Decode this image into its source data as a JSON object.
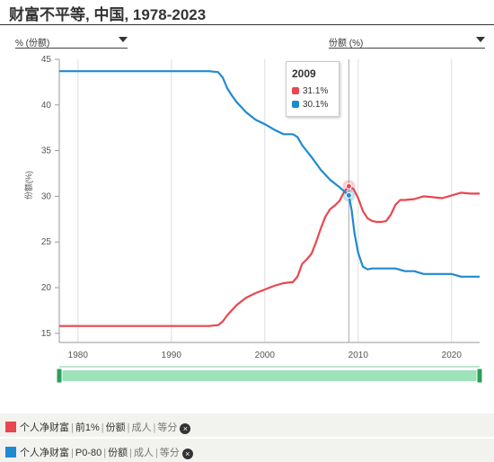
{
  "title": "财富不平等, 中国, 1978-2023",
  "selectors": {
    "left": "% (份额)",
    "right": "份额 (%)"
  },
  "tooltip": {
    "year": "2009",
    "series1": "31.1%",
    "series2": "30.1%"
  },
  "legend": [
    {
      "color": "#e8474f",
      "parts": [
        "个人净财富",
        "前1%",
        "份额"
      ],
      "muted": [
        "成人",
        "等分"
      ],
      "remove": "×"
    },
    {
      "color": "#1f8ad0",
      "parts": [
        "个人净财富",
        "P0-80",
        "份额"
      ],
      "muted": [
        "成人",
        "等分"
      ],
      "remove": "×"
    }
  ],
  "chart_data": {
    "type": "line",
    "title": "财富不平等, 中国, 1978-2023",
    "xlabel": "",
    "ylabel": "份额(%)",
    "xlim": [
      1978,
      2023
    ],
    "ylim": [
      14,
      45
    ],
    "xticks": [
      1980,
      1990,
      2000,
      2010,
      2020
    ],
    "yticks": [
      15,
      20,
      25,
      30,
      35,
      40,
      45
    ],
    "grid": true,
    "highlight_x": 2009,
    "series": [
      {
        "name": "个人净财富 | 前1% | 份额",
        "color": "#e8474f",
        "x": [
          1978,
          1980,
          1985,
          1990,
          1994,
          1995,
          1995.5,
          1996,
          1997,
          1998,
          1999,
          2000,
          2001,
          2002,
          2003,
          2003.5,
          2004,
          2004.5,
          2005,
          2005.5,
          2006,
          2006.5,
          2007,
          2007.5,
          2008,
          2008.5,
          2009,
          2009.5,
          2010,
          2010.5,
          2011,
          2011.5,
          2012,
          2012.5,
          2013,
          2013.5,
          2014,
          2014.5,
          2015,
          2016,
          2017,
          2018,
          2019,
          2020,
          2021,
          2022,
          2023
        ],
        "values": [
          15.8,
          15.8,
          15.8,
          15.8,
          15.8,
          15.9,
          16.3,
          17.0,
          18.1,
          18.9,
          19.4,
          19.8,
          20.2,
          20.5,
          20.6,
          21.2,
          22.6,
          23.1,
          23.7,
          25.0,
          26.5,
          27.8,
          28.6,
          29.0,
          29.5,
          30.5,
          31.1,
          30.8,
          29.8,
          28.4,
          27.6,
          27.3,
          27.2,
          27.2,
          27.3,
          28.0,
          29.1,
          29.6,
          29.6,
          29.7,
          30.0,
          29.9,
          29.8,
          30.1,
          30.4,
          30.3,
          30.3
        ]
      },
      {
        "name": "个人净财富 | P0-80 | 份额",
        "color": "#1f8ad0",
        "x": [
          1978,
          1980,
          1985,
          1990,
          1994,
          1995,
          1995.5,
          1996,
          1996.5,
          1997,
          1998,
          1999,
          2000,
          2001,
          2002,
          2003,
          2003.5,
          2004,
          2005,
          2006,
          2007,
          2008,
          2009,
          2009.3,
          2009.6,
          2010,
          2010.5,
          2011,
          2011.5,
          2012,
          2013,
          2014,
          2015,
          2016,
          2017,
          2018,
          2019,
          2020,
          2021,
          2022,
          2023
        ],
        "values": [
          43.7,
          43.7,
          43.7,
          43.7,
          43.7,
          43.6,
          43.0,
          41.8,
          41.0,
          40.3,
          39.2,
          38.4,
          37.9,
          37.3,
          36.8,
          36.8,
          36.5,
          35.6,
          34.3,
          32.9,
          31.8,
          31.0,
          30.1,
          28.5,
          26.0,
          23.8,
          22.3,
          22.0,
          22.1,
          22.1,
          22.1,
          22.1,
          21.8,
          21.8,
          21.5,
          21.5,
          21.5,
          21.5,
          21.2,
          21.2,
          21.2
        ]
      }
    ]
  }
}
